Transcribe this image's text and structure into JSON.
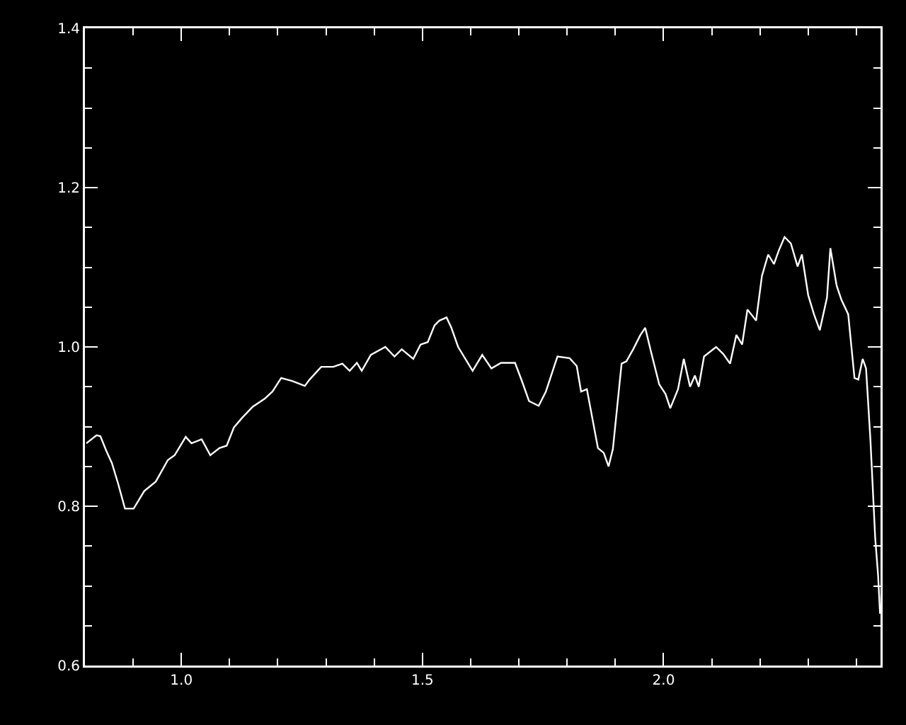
{
  "chart_data": {
    "type": "line",
    "grid": false,
    "marker": "none",
    "line_style": "solid",
    "xlim": [
      0.8,
      2.45
    ],
    "ylim": [
      0.6,
      1.4
    ],
    "xticks": [
      {
        "value": 1,
        "label": "1.0"
      },
      1.5,
      {
        "value": 2,
        "label": "2.0"
      }
    ],
    "yticks": [
      0.6,
      0.8,
      {
        "value": 1,
        "label": "1.0"
      },
      1.2,
      1.4
    ],
    "series": [
      {
        "color": "#ffffff",
        "x": [
          0.803,
          0.824,
          0.832,
          0.844,
          0.856,
          0.869,
          0.883,
          0.901,
          0.923,
          0.947,
          0.972,
          0.986,
          1.009,
          1.021,
          1.042,
          1.06,
          1.079,
          1.094,
          1.109,
          1.126,
          1.148,
          1.173,
          1.189,
          1.207,
          1.231,
          1.256,
          1.266,
          1.29,
          1.315,
          1.334,
          1.349,
          1.364,
          1.374,
          1.393,
          1.423,
          1.442,
          1.457,
          1.481,
          1.496,
          1.511,
          1.525,
          1.535,
          1.55,
          1.56,
          1.574,
          1.604,
          1.624,
          1.643,
          1.663,
          1.692,
          1.707,
          1.721,
          1.741,
          1.756,
          1.78,
          1.805,
          1.82,
          1.829,
          1.841,
          1.864,
          1.876,
          1.886,
          1.895,
          1.913,
          1.923,
          1.937,
          1.952,
          1.962,
          1.974,
          1.991,
          2.004,
          2.014,
          2.03,
          2.042,
          2.055,
          2.065,
          2.073,
          2.084,
          2.109,
          2.124,
          2.138,
          2.151,
          2.163,
          2.174,
          2.192,
          2.204,
          2.217,
          2.229,
          2.239,
          2.251,
          2.264,
          2.278,
          2.287,
          2.3,
          2.312,
          2.324,
          2.339,
          2.346,
          2.359,
          2.369,
          2.383,
          2.396,
          2.404,
          2.413,
          2.42,
          2.429,
          2.439,
          2.445,
          2.449
        ],
        "values": [
          0.879,
          0.889,
          0.888,
          0.87,
          0.854,
          0.828,
          0.797,
          0.797,
          0.819,
          0.831,
          0.858,
          0.864,
          0.887,
          0.879,
          0.884,
          0.864,
          0.873,
          0.876,
          0.899,
          0.911,
          0.925,
          0.935,
          0.944,
          0.961,
          0.957,
          0.951,
          0.959,
          0.975,
          0.975,
          0.979,
          0.97,
          0.98,
          0.97,
          0.99,
          1.0,
          0.988,
          0.997,
          0.985,
          1.003,
          1.006,
          1.027,
          1.033,
          1.037,
          1.024,
          1.0,
          0.97,
          0.99,
          0.973,
          0.98,
          0.98,
          0.956,
          0.932,
          0.926,
          0.944,
          0.988,
          0.986,
          0.976,
          0.944,
          0.947,
          0.873,
          0.867,
          0.85,
          0.872,
          0.979,
          0.982,
          0.997,
          1.015,
          1.024,
          0.994,
          0.953,
          0.941,
          0.923,
          0.947,
          0.985,
          0.95,
          0.964,
          0.95,
          0.988,
          1.0,
          0.991,
          0.979,
          1.015,
          1.003,
          1.047,
          1.033,
          1.089,
          1.116,
          1.104,
          1.121,
          1.138,
          1.13,
          1.101,
          1.116,
          1.065,
          1.041,
          1.021,
          1.062,
          1.124,
          1.077,
          1.059,
          1.041,
          0.961,
          0.959,
          0.985,
          0.973,
          0.884,
          0.76,
          0.713,
          0.665
        ]
      }
    ]
  }
}
